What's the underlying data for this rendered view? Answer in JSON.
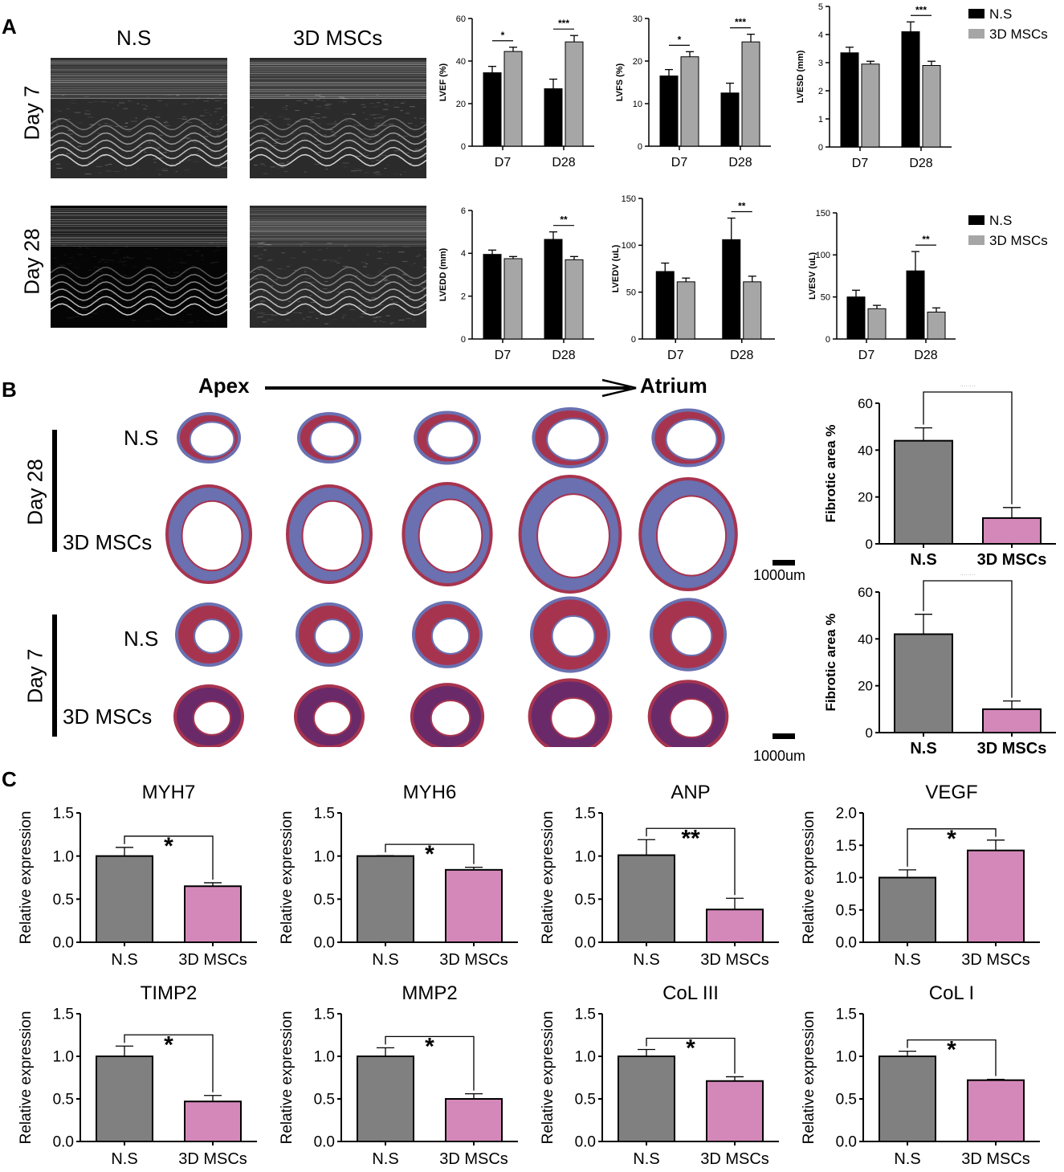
{
  "panel_labels": {
    "a": "A",
    "b": "B",
    "c": "C"
  },
  "panel_a": {
    "col_headers": [
      "N.S",
      "3D MSCs"
    ],
    "row_labels": [
      "Day 7",
      "Day 28"
    ]
  },
  "panel_b": {
    "axis_start": "Apex",
    "axis_end": "Atrium",
    "groups": [
      "Day 28",
      "Day 7"
    ],
    "row_labels": [
      "N.S",
      "3D MSCs",
      "N.S",
      "3D MSCs"
    ],
    "scale_label": "1000um"
  },
  "colors": {
    "ns_echo": "#000000",
    "msc_echo": "#a6a6a6",
    "ns_bar": "#808080",
    "msc_bar": "#d488b9",
    "stain_red": "#a7344f",
    "stain_blue": "#6a70b0"
  },
  "chart_data": [
    {
      "id": "lvef",
      "type": "bar",
      "ylabel": "LVEF (%)",
      "categories": [
        "D7",
        "D28"
      ],
      "ylim": [
        0,
        60
      ],
      "yticks": [
        0,
        20,
        40,
        60
      ],
      "series": [
        {
          "name": "N.S",
          "values": [
            34.5,
            27
          ],
          "errors": [
            3,
            4.5
          ]
        },
        {
          "name": "3D MSCs",
          "values": [
            44.5,
            49
          ],
          "errors": [
            2,
            3
          ]
        }
      ],
      "significance": [
        {
          "category": "D7",
          "label": "*"
        },
        {
          "category": "D28",
          "label": "***"
        }
      ]
    },
    {
      "id": "lvfs",
      "type": "bar",
      "ylabel": "LVFS (%)",
      "categories": [
        "D7",
        "D28"
      ],
      "ylim": [
        0,
        30
      ],
      "yticks": [
        0,
        10,
        20,
        30
      ],
      "series": [
        {
          "name": "N.S",
          "values": [
            16.5,
            12.5
          ],
          "errors": [
            1.5,
            2.3
          ]
        },
        {
          "name": "3D MSCs",
          "values": [
            21,
            24.5
          ],
          "errors": [
            1.2,
            1.8
          ]
        }
      ],
      "significance": [
        {
          "category": "D7",
          "label": "*"
        },
        {
          "category": "D28",
          "label": "***"
        }
      ]
    },
    {
      "id": "lvesd",
      "type": "bar",
      "ylabel": "LVESD (mm)",
      "categories": [
        "D7",
        "D28"
      ],
      "ylim": [
        0,
        5
      ],
      "yticks": [
        0,
        1,
        2,
        3,
        4,
        5
      ],
      "series": [
        {
          "name": "N.S",
          "values": [
            3.35,
            4.1
          ],
          "errors": [
            0.2,
            0.35
          ]
        },
        {
          "name": "3D MSCs",
          "values": [
            2.95,
            2.9
          ],
          "errors": [
            0.1,
            0.15
          ]
        }
      ],
      "significance": [
        {
          "category": "D28",
          "label": "***"
        }
      ]
    },
    {
      "id": "lvedd",
      "type": "bar",
      "ylabel": "LVEDD (mm)",
      "categories": [
        "D7",
        "D28"
      ],
      "ylim": [
        0,
        6
      ],
      "yticks": [
        0,
        2,
        4,
        6
      ],
      "series": [
        {
          "name": "N.S",
          "values": [
            3.95,
            4.65
          ],
          "errors": [
            0.2,
            0.35
          ]
        },
        {
          "name": "3D MSCs",
          "values": [
            3.75,
            3.7
          ],
          "errors": [
            0.1,
            0.15
          ]
        }
      ],
      "significance": [
        {
          "category": "D28",
          "label": "**"
        }
      ]
    },
    {
      "id": "lvedv",
      "type": "bar",
      "ylabel": "LVEDV (uL)",
      "categories": [
        "D7",
        "D28"
      ],
      "ylim": [
        0,
        150
      ],
      "yticks": [
        0,
        50,
        100,
        150
      ],
      "series": [
        {
          "name": "N.S",
          "values": [
            72,
            106
          ],
          "errors": [
            9,
            23
          ]
        },
        {
          "name": "3D MSCs",
          "values": [
            61,
            61
          ],
          "errors": [
            4,
            6
          ]
        }
      ],
      "significance": [
        {
          "category": "D28",
          "label": "**"
        }
      ]
    },
    {
      "id": "lvesv",
      "type": "bar",
      "ylabel": "LVESV (uL)",
      "categories": [
        "D7",
        "D28"
      ],
      "ylim": [
        0,
        150
      ],
      "yticks": [
        0,
        50,
        100,
        150
      ],
      "series": [
        {
          "name": "N.S",
          "values": [
            50,
            81
          ],
          "errors": [
            8,
            23
          ]
        },
        {
          "name": "3D MSCs",
          "values": [
            36,
            32
          ],
          "errors": [
            4,
            5
          ]
        }
      ],
      "significance": [
        {
          "category": "D28",
          "label": "**"
        }
      ]
    },
    {
      "id": "fib28",
      "type": "bar",
      "ylabel": "Fibrotic area %",
      "categories": [
        "N.S",
        "3D MSCs"
      ],
      "ylim": [
        0,
        60
      ],
      "yticks": [
        0,
        20,
        40,
        60
      ],
      "values": [
        44,
        11
      ],
      "errors": [
        5.5,
        4.5
      ],
      "significance": [
        {
          "label": "****"
        }
      ]
    },
    {
      "id": "fib7",
      "type": "bar",
      "ylabel": "Fibrotic area %",
      "categories": [
        "N.S",
        "3D MSCs"
      ],
      "ylim": [
        0,
        60
      ],
      "yticks": [
        0,
        20,
        40,
        60
      ],
      "values": [
        42,
        10
      ],
      "errors": [
        8.5,
        3.5
      ],
      "significance": [
        {
          "label": "****"
        }
      ]
    },
    {
      "id": "myh7",
      "type": "bar",
      "title": "MYH7",
      "ylabel": "Relative expression",
      "categories": [
        "N.S",
        "3D MSCs"
      ],
      "ylim": [
        0,
        1.5
      ],
      "yticks": [
        "0.0",
        "0.5",
        "1.0",
        "1.5"
      ],
      "values": [
        1.0,
        0.65
      ],
      "errors": [
        0.1,
        0.04
      ],
      "significance": [
        {
          "label": "*"
        }
      ]
    },
    {
      "id": "myh6",
      "type": "bar",
      "title": "MYH6",
      "ylabel": "Relative expression",
      "categories": [
        "N.S",
        "3D MSCs"
      ],
      "ylim": [
        0,
        1.5
      ],
      "yticks": [
        "0.0",
        "0.5",
        "1.0",
        "1.5"
      ],
      "values": [
        1.0,
        0.84
      ],
      "errors": [
        0.005,
        0.03
      ],
      "significance": [
        {
          "label": "*"
        }
      ]
    },
    {
      "id": "anp",
      "type": "bar",
      "title": "ANP",
      "ylabel": "Relative expression",
      "categories": [
        "N.S",
        "3D MSCs"
      ],
      "ylim": [
        0,
        1.5
      ],
      "yticks": [
        "0.0",
        "0.5",
        "1.0",
        "1.5"
      ],
      "values": [
        1.01,
        0.38
      ],
      "errors": [
        0.18,
        0.13
      ],
      "significance": [
        {
          "label": "**"
        }
      ]
    },
    {
      "id": "vegf",
      "type": "bar",
      "title": "VEGF",
      "ylabel": "Relative expression",
      "categories": [
        "N.S",
        "3D MSCs"
      ],
      "ylim": [
        0,
        2.0
      ],
      "yticks": [
        "0.0",
        "0.5",
        "1.0",
        "1.5",
        "2.0"
      ],
      "values": [
        1.0,
        1.42
      ],
      "errors": [
        0.12,
        0.16
      ],
      "significance": [
        {
          "label": "*"
        }
      ]
    },
    {
      "id": "timp2",
      "type": "bar",
      "title": "TIMP2",
      "ylabel": "Relative expression",
      "categories": [
        "N.S",
        "3D MSCs"
      ],
      "ylim": [
        0,
        1.5
      ],
      "yticks": [
        "0.0",
        "0.5",
        "1.0",
        "1.5"
      ],
      "values": [
        1.0,
        0.47
      ],
      "errors": [
        0.12,
        0.07
      ],
      "significance": [
        {
          "label": "*"
        }
      ]
    },
    {
      "id": "mmp2",
      "type": "bar",
      "title": "MMP2",
      "ylabel": "Relative expression",
      "categories": [
        "N.S",
        "3D MSCs"
      ],
      "ylim": [
        0,
        1.5
      ],
      "yticks": [
        "0.0",
        "0.5",
        "1.0",
        "1.5"
      ],
      "values": [
        1.0,
        0.5
      ],
      "errors": [
        0.1,
        0.06
      ],
      "significance": [
        {
          "label": "*"
        }
      ]
    },
    {
      "id": "col3",
      "type": "bar",
      "title": "CoL III",
      "ylabel": "Relative expression",
      "categories": [
        "N.S",
        "3D MSCs"
      ],
      "ylim": [
        0,
        1.5
      ],
      "yticks": [
        "0.0",
        "0.5",
        "1.0",
        "1.5"
      ],
      "values": [
        1.0,
        0.71
      ],
      "errors": [
        0.08,
        0.05
      ],
      "significance": [
        {
          "label": "*"
        }
      ]
    },
    {
      "id": "col1",
      "type": "bar",
      "title": "CoL I",
      "ylabel": "Relative expression",
      "categories": [
        "N.S",
        "3D MSCs"
      ],
      "ylim": [
        0,
        1.5
      ],
      "yticks": [
        "0.0",
        "0.5",
        "1.0",
        "1.5"
      ],
      "values": [
        1.0,
        0.72
      ],
      "errors": [
        0.06,
        0.01
      ],
      "significance": [
        {
          "label": "*"
        }
      ]
    }
  ]
}
